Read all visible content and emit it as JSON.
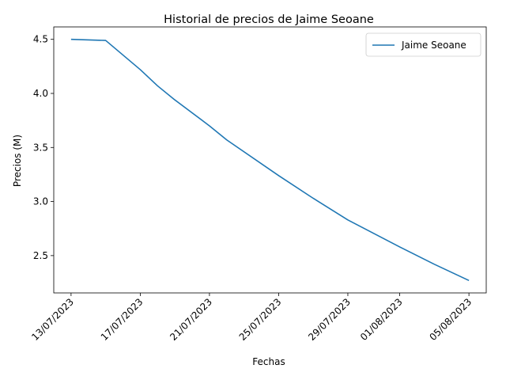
{
  "chart_data": {
    "type": "line",
    "title": "Historial de precios de Jaime Seoane",
    "xlabel": "Fechas",
    "ylabel": "Precios (M)",
    "x_tick_labels": [
      "13/07/2023",
      "17/07/2023",
      "21/07/2023",
      "25/07/2023",
      "29/07/2023",
      "01/08/2023",
      "05/08/2023"
    ],
    "y_tick_labels": [
      "2.5",
      "3.0",
      "3.5",
      "4.0",
      "4.5"
    ],
    "ylim": [
      2.155,
      4.615
    ],
    "xlim": [
      "2023-07-12",
      "2023-08-06"
    ],
    "legend": {
      "position": "top-right",
      "entries": [
        "Jaime Seoane"
      ]
    },
    "series": [
      {
        "name": "Jaime Seoane",
        "color": "#1f77b4",
        "points": [
          {
            "x": "2023-07-13",
            "y": 4.5
          },
          {
            "x": "2023-07-15",
            "y": 4.49
          },
          {
            "x": "2023-07-17",
            "y": 4.22
          },
          {
            "x": "2023-07-18",
            "y": 4.07
          },
          {
            "x": "2023-07-19",
            "y": 3.94
          },
          {
            "x": "2023-07-21",
            "y": 3.7
          },
          {
            "x": "2023-07-22",
            "y": 3.57
          },
          {
            "x": "2023-07-25",
            "y": 3.24
          },
          {
            "x": "2023-07-27",
            "y": 3.03
          },
          {
            "x": "2023-07-29",
            "y": 2.83
          },
          {
            "x": "2023-08-01",
            "y": 2.58
          },
          {
            "x": "2023-08-03",
            "y": 2.42
          },
          {
            "x": "2023-08-05",
            "y": 2.27
          }
        ]
      }
    ]
  }
}
